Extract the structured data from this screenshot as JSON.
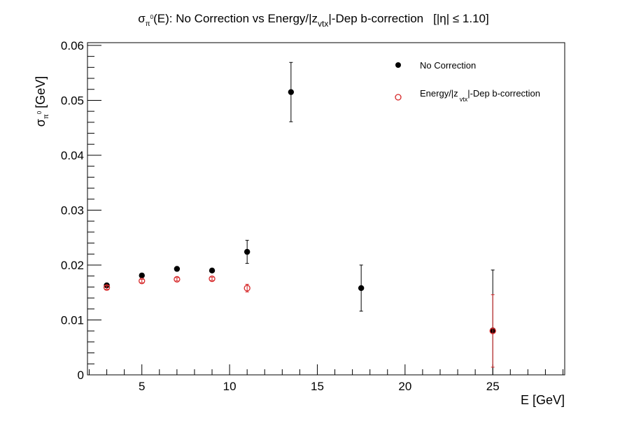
{
  "title": {
    "sigma": "σ",
    "sub_pi": "π",
    "sup_zero": "0",
    "mid": "(E): No Correction vs Energy/|z",
    "sub_vtx": "vtx",
    "tail": "|-Dep b-correction",
    "eta_cut": "[|η| ≤ 1.10]"
  },
  "legend": {
    "entries": [
      {
        "label": "No Correction"
      },
      {
        "label_main": "Energy/|z",
        "label_sub": "vtx",
        "label_tail": "|-Dep b-correction"
      }
    ]
  },
  "colors": {
    "series1": "#000000",
    "series2": "#d62728"
  },
  "chart_data": {
    "type": "scatter",
    "xlabel": "E [GeV]",
    "ylabel": "σπ0 [GeV]",
    "ylabel_parts": {
      "sigma": "σ",
      "sub": "π",
      "sup": "0",
      "unit": "[GeV]"
    },
    "xlim": [
      1.9,
      29.1
    ],
    "ylim": [
      0,
      0.0605
    ],
    "x_major_ticks": [
      5,
      10,
      15,
      20,
      25
    ],
    "x_minor_step": 1,
    "y_major_ticks": [
      0,
      0.01,
      0.02,
      0.03,
      0.04,
      0.05,
      0.06
    ],
    "y_minor_step": 0.002,
    "x_tick_labels": [
      "5",
      "10",
      "15",
      "20",
      "25"
    ],
    "y_tick_labels": [
      "0",
      "0.01",
      "0.02",
      "0.03",
      "0.04",
      "0.05",
      "0.06"
    ],
    "grid": false,
    "legend_position": "top-right",
    "series": [
      {
        "name": "No Correction",
        "marker": "filled-circle",
        "points": [
          {
            "x": 3,
            "y": 0.0163,
            "err": 0.0003
          },
          {
            "x": 5,
            "y": 0.0181,
            "err": 0.0003
          },
          {
            "x": 7,
            "y": 0.0193,
            "err": 0.0003
          },
          {
            "x": 9,
            "y": 0.019,
            "err": 0.0003
          },
          {
            "x": 11,
            "y": 0.0224,
            "err": 0.0021
          },
          {
            "x": 13.5,
            "y": 0.0515,
            "err": 0.0054
          },
          {
            "x": 17.5,
            "y": 0.0158,
            "err": 0.0042
          },
          {
            "x": 25,
            "y": 0.0081,
            "err": 0.011
          }
        ]
      },
      {
        "name": "Energy/|zvtx|-Dep b-correction",
        "marker": "open-circle",
        "points": [
          {
            "x": 3,
            "y": 0.0159,
            "err": 0.0003
          },
          {
            "x": 5,
            "y": 0.0171,
            "err": 0.0003
          },
          {
            "x": 7,
            "y": 0.0174,
            "err": 0.0003
          },
          {
            "x": 9,
            "y": 0.0175,
            "err": 0.0003
          },
          {
            "x": 11,
            "y": 0.0158,
            "err": 0.0007
          },
          {
            "x": 25,
            "y": 0.008,
            "err": 0.0066
          }
        ]
      }
    ]
  }
}
